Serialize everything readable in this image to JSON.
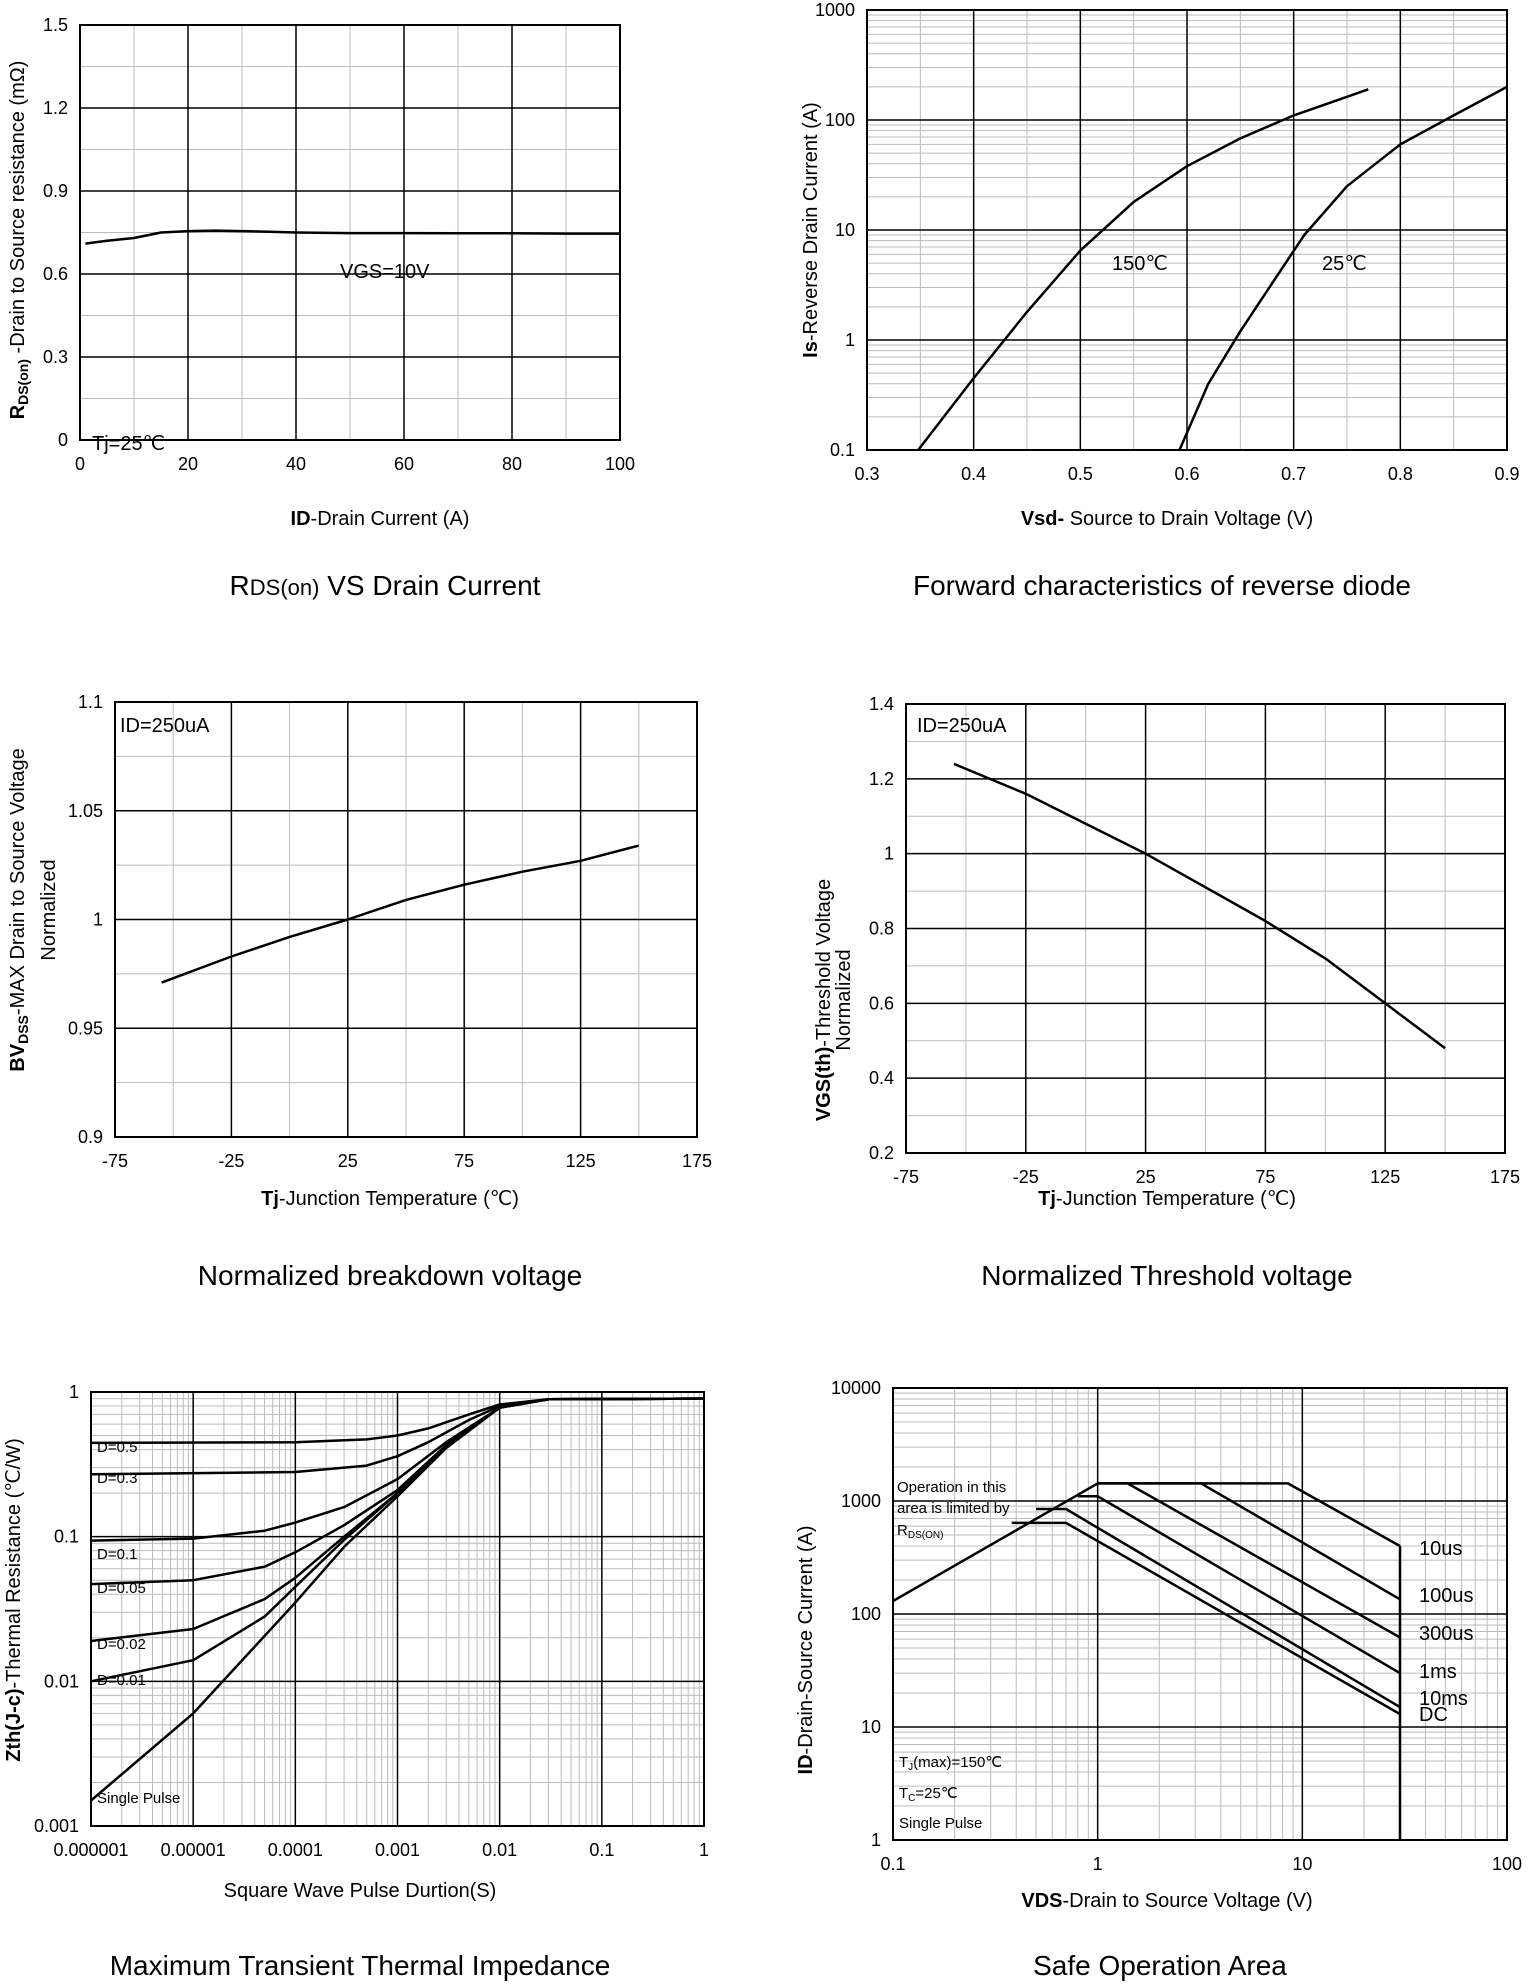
{
  "chart_data": [
    {
      "id": "rdson",
      "type": "line",
      "caption_main": "R",
      "caption_sub": "DS(on)",
      "caption_rest": " VS Drain Current",
      "xlabel_bold": "ID",
      "xlabel_rest": "-Drain Current (A)",
      "ylabel_bold": "R",
      "ylabel_sub": "DS(on)",
      "ylabel_rest": " -Drain to Source resistance (mΩ)",
      "xlim": [
        0,
        100
      ],
      "ylim": [
        0,
        1.5
      ],
      "x_ticks": [
        0,
        20,
        40,
        60,
        80,
        100
      ],
      "x_tick_labels": [
        "0",
        "20",
        "40",
        "60",
        "80",
        "100"
      ],
      "y_ticks": [
        0,
        0.3,
        0.6,
        0.9,
        1.2,
        1.5
      ],
      "y_tick_labels": [
        "0",
        "0.3",
        "0.6",
        "0.9",
        "1.2",
        "1.5"
      ],
      "annotations": [
        "VGS=10V",
        "Tj=25℃"
      ],
      "series": [
        {
          "x": [
            1,
            5,
            10,
            15,
            20,
            25,
            30,
            35,
            40,
            50,
            60,
            70,
            80,
            90,
            100
          ],
          "y": [
            0.71,
            0.72,
            0.73,
            0.75,
            0.755,
            0.757,
            0.755,
            0.753,
            0.75,
            0.748,
            0.748,
            0.747,
            0.747,
            0.746,
            0.746
          ]
        }
      ]
    },
    {
      "id": "diode",
      "type": "line",
      "caption_main": "Forward characteristics of reverse diode",
      "xlabel_bold": "Vsd-",
      "xlabel_rest": " Source to Drain Voltage (V)",
      "ylabel_bold": "Is",
      "ylabel_rest": "-Reverse  Drain Current (A)",
      "xlim": [
        0.3,
        0.9
      ],
      "ylim": [
        0.1,
        1000
      ],
      "yscale": "log",
      "x_ticks": [
        0.3,
        0.4,
        0.5,
        0.6,
        0.7,
        0.8,
        0.9
      ],
      "x_tick_labels": [
        "0.3",
        "0.4",
        "0.5",
        "0.6",
        "0.7",
        "0.8",
        "0.9"
      ],
      "y_ticks": [
        0.1,
        1,
        10,
        100,
        1000
      ],
      "y_tick_labels": [
        "0.1",
        "1",
        "10",
        "100",
        "1000"
      ],
      "series": [
        {
          "name": "150℃",
          "x": [
            0.348,
            0.4,
            0.45,
            0.5,
            0.55,
            0.6,
            0.65,
            0.7,
            0.74,
            0.77
          ],
          "y": [
            0.1,
            0.45,
            1.8,
            6.5,
            18,
            38,
            68,
            110,
            150,
            190
          ]
        },
        {
          "name": "25℃",
          "x": [
            0.593,
            0.62,
            0.65,
            0.68,
            0.71,
            0.75,
            0.8,
            0.85,
            0.9
          ],
          "y": [
            0.1,
            0.4,
            1.2,
            3.3,
            9,
            25,
            60,
            110,
            200
          ]
        }
      ]
    },
    {
      "id": "bvdss",
      "type": "line",
      "caption_main": "Normalized breakdown voltage",
      "xlabel_bold": "Tj",
      "xlabel_rest": "-Junction  Temperature  (℃)",
      "ylabel_bold": "BV",
      "ylabel_sub": "DSS",
      "ylabel_rest": "-MAX Drain to Source Voltage",
      "ylabel2": "Normalized",
      "xlim": [
        -75,
        175
      ],
      "ylim": [
        0.9,
        1.1
      ],
      "x_ticks": [
        -75,
        -25,
        25,
        75,
        125,
        175
      ],
      "x_tick_labels": [
        "-75",
        "-25",
        "25",
        "75",
        "125",
        "175"
      ],
      "y_ticks": [
        0.9,
        0.95,
        1,
        1.05,
        1.1
      ],
      "y_tick_labels": [
        "0.9",
        "0.95",
        "1",
        "1.05",
        "1.1"
      ],
      "annotations": [
        "ID=250uA"
      ],
      "series": [
        {
          "x": [
            -55,
            -25,
            0,
            25,
            50,
            75,
            100,
            125,
            150
          ],
          "y": [
            0.971,
            0.983,
            0.992,
            1.0,
            1.009,
            1.016,
            1.022,
            1.027,
            1.034
          ]
        }
      ]
    },
    {
      "id": "vth",
      "type": "line",
      "caption_main": "Normalized Threshold voltage",
      "xlabel_bold": "Tj",
      "xlabel_rest": "-Junction  Temperature  (℃)",
      "ylabel_bold": "VGS(th)",
      "ylabel_rest": "-Threshold  Voltage",
      "ylabel2": "Normalized",
      "xlim": [
        -75,
        175
      ],
      "ylim": [
        0.2,
        1.4
      ],
      "x_ticks": [
        -75,
        -25,
        25,
        75,
        125,
        175
      ],
      "x_tick_labels": [
        "-75",
        "-25",
        "25",
        "75",
        "125",
        "175"
      ],
      "y_ticks": [
        0.2,
        0.4,
        0.6,
        0.8,
        1.0,
        1.2,
        1.4
      ],
      "y_tick_labels": [
        "0.2",
        "0.4",
        "0.6",
        "0.8",
        "1",
        "1.2",
        "1.4"
      ],
      "annotations": [
        "ID=250uA"
      ],
      "series": [
        {
          "x": [
            -55,
            -25,
            0,
            25,
            50,
            75,
            100,
            125,
            150
          ],
          "y": [
            1.24,
            1.16,
            1.08,
            1.0,
            0.91,
            0.82,
            0.72,
            0.6,
            0.48
          ]
        }
      ]
    },
    {
      "id": "zth",
      "type": "line",
      "caption_main": "Maximum Transient Thermal Impedance",
      "xlabel_bold": "",
      "xlabel_rest": "Square Wave Pulse  Durtion(S)",
      "ylabel_bold": "Zth(J-c)",
      "ylabel_rest": "-Thermal  Resistance (℃/W)",
      "xlim": [
        1e-06,
        1
      ],
      "ylim": [
        0.001,
        1
      ],
      "xscale": "log",
      "yscale": "log",
      "x_ticks": [
        1e-06,
        1e-05,
        0.0001,
        0.001,
        0.01,
        0.1,
        1
      ],
      "x_tick_labels": [
        "0.000001",
        "0.00001",
        "0.0001",
        "0.001",
        "0.01",
        "0.1",
        "1"
      ],
      "y_ticks": [
        0.001,
        0.01,
        0.1,
        1
      ],
      "y_tick_labels": [
        "0.001",
        "0.01",
        "0.1",
        "1"
      ],
      "series": [
        {
          "name": "D=0.5",
          "x": [
            1e-06,
            0.0001,
            0.0005,
            0.001,
            0.002,
            0.005,
            0.01,
            0.03,
            1
          ],
          "y": [
            0.445,
            0.45,
            0.47,
            0.5,
            0.56,
            0.7,
            0.82,
            0.89,
            0.9
          ]
        },
        {
          "name": "D=0.3",
          "x": [
            1e-06,
            0.0001,
            0.0005,
            0.001,
            0.002,
            0.005,
            0.01,
            0.03,
            1
          ],
          "y": [
            0.27,
            0.28,
            0.31,
            0.36,
            0.45,
            0.64,
            0.8,
            0.89,
            0.9
          ]
        },
        {
          "name": "D=0.1",
          "x": [
            1e-06,
            1e-05,
            5e-05,
            0.0001,
            0.0003,
            0.001,
            0.003,
            0.01,
            0.03,
            1
          ],
          "y": [
            0.094,
            0.097,
            0.11,
            0.125,
            0.16,
            0.25,
            0.45,
            0.78,
            0.89,
            0.9
          ]
        },
        {
          "name": "D=0.05",
          "x": [
            1e-06,
            1e-05,
            5e-05,
            0.0001,
            0.0003,
            0.001,
            0.003,
            0.01,
            0.03,
            1
          ],
          "y": [
            0.047,
            0.05,
            0.062,
            0.078,
            0.12,
            0.21,
            0.43,
            0.78,
            0.89,
            0.9
          ]
        },
        {
          "name": "D=0.02",
          "x": [
            1e-06,
            1e-05,
            5e-05,
            0.0001,
            0.0003,
            0.001,
            0.003,
            0.01,
            0.03,
            1
          ],
          "y": [
            0.019,
            0.023,
            0.037,
            0.052,
            0.1,
            0.2,
            0.42,
            0.78,
            0.89,
            0.9
          ]
        },
        {
          "name": "D=0.01",
          "x": [
            1e-06,
            1e-05,
            5e-05,
            0.0001,
            0.0003,
            0.001,
            0.003,
            0.01,
            0.03,
            1
          ],
          "y": [
            0.01,
            0.014,
            0.028,
            0.045,
            0.095,
            0.2,
            0.42,
            0.78,
            0.89,
            0.9
          ]
        },
        {
          "name": "Single Pulse",
          "x": [
            1e-06,
            1e-05,
            0.0001,
            0.0003,
            0.001,
            0.003,
            0.01,
            0.03,
            1
          ],
          "y": [
            0.0015,
            0.006,
            0.035,
            0.085,
            0.19,
            0.41,
            0.78,
            0.89,
            0.9
          ]
        }
      ]
    },
    {
      "id": "soa",
      "type": "line",
      "caption_main": "Safe Operation Area",
      "xlabel_bold": "VDS",
      "xlabel_rest": "-Drain to Source Voltage (V)",
      "ylabel_bold": "ID",
      "ylabel_rest": "-Drain-Source Current (A)",
      "xlim": [
        0.1,
        100
      ],
      "ylim": [
        1,
        10000
      ],
      "xscale": "log",
      "yscale": "log",
      "x_ticks": [
        0.1,
        1,
        10,
        100
      ],
      "x_tick_labels": [
        "0.1",
        "1",
        "10",
        "100"
      ],
      "y_ticks": [
        1,
        10,
        100,
        1000,
        10000
      ],
      "y_tick_labels": [
        "1",
        "10",
        "100",
        "1000",
        "10000"
      ],
      "annotation_box": [
        "Operation in this",
        "area is limited by",
        "R"
      ],
      "annotation_box_sub": "DS(ON)",
      "conditions": [
        "T",
        "(max)=150℃",
        "T",
        "=25℃",
        "Single Pulse"
      ],
      "conditions_subs": [
        "J",
        "C"
      ],
      "series": [
        {
          "name": "10us",
          "x": [
            0.1,
            1,
            8.5,
            30
          ],
          "y": [
            130,
            1430,
            1430,
            400
          ]
        },
        {
          "name": "100us",
          "x": [
            1.4,
            3.2,
            30
          ],
          "y": [
            1430,
            1430,
            135
          ]
        },
        {
          "name": "300us",
          "x": [
            1.0,
            1.4,
            30
          ],
          "y": [
            1430,
            1430,
            62
          ]
        },
        {
          "name": "1ms",
          "x": [
            0.8,
            1.0,
            30
          ],
          "y": [
            1100,
            1100,
            30
          ]
        },
        {
          "name": "10ms",
          "x": [
            0.5,
            0.7,
            30
          ],
          "y": [
            850,
            850,
            15
          ]
        },
        {
          "name": "DC",
          "x": [
            0.38,
            0.7,
            30
          ],
          "y": [
            640,
            640,
            13
          ]
        },
        {
          "name": "limit",
          "x": [
            30,
            30
          ],
          "y": [
            1,
            400
          ]
        }
      ]
    }
  ]
}
